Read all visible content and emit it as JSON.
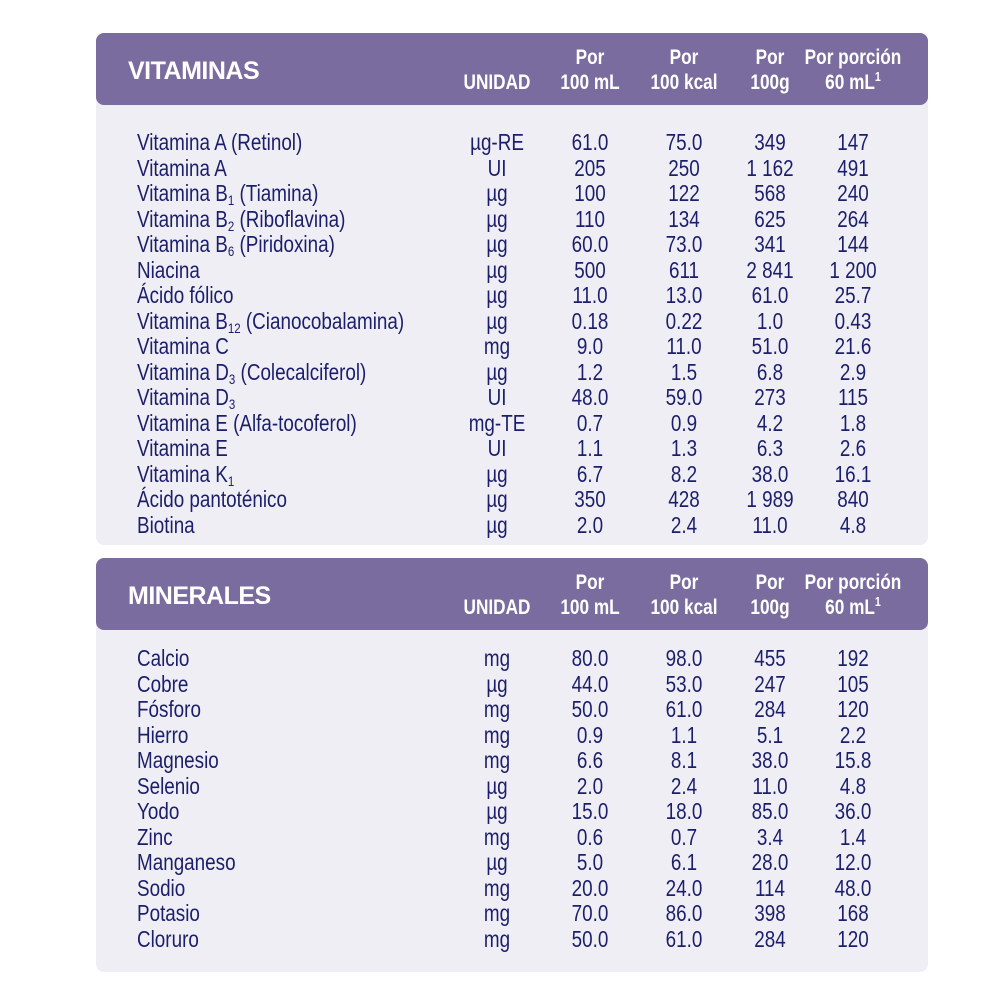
{
  "columns": {
    "unit": "UNIDAD",
    "c1_top": "Por",
    "c1_bottom": "100 mL",
    "c2_top": "Por",
    "c2_bottom": "100 kcal",
    "c3_top": "Por",
    "c3_bottom": "100g",
    "c4_top": "Por porción",
    "c4_bottom": "60 mL",
    "c4_sup": "1"
  },
  "colors": {
    "header_bg": "#7a6c9e",
    "body_bg": "#f0eef5",
    "text": "#1b1f6b"
  },
  "vitaminas": {
    "title": "VITAMINAS",
    "rows": [
      {
        "name": "Vitamina A (Retinol)",
        "unit": "µg-RE",
        "v": [
          "61.0",
          "75.0",
          "349",
          "147"
        ]
      },
      {
        "name": "Vitamina A",
        "unit": "UI",
        "v": [
          "205",
          "250",
          "1 162",
          "491"
        ]
      },
      {
        "name": "Vitamina B",
        "sub": "1",
        "suffix": " (Tiamina)",
        "unit": "µg",
        "v": [
          "100",
          "122",
          "568",
          "240"
        ]
      },
      {
        "name": "Vitamina B",
        "sub": "2",
        "suffix": " (Riboflavina)",
        "unit": "µg",
        "v": [
          "110",
          "134",
          "625",
          "264"
        ]
      },
      {
        "name": "Vitamina B",
        "sub": "6",
        "suffix": " (Piridoxina)",
        "unit": "µg",
        "v": [
          "60.0",
          "73.0",
          "341",
          "144"
        ]
      },
      {
        "name": "Niacina",
        "unit": "µg",
        "v": [
          "500",
          "611",
          "2 841",
          "1 200"
        ]
      },
      {
        "name": "Ácido fólico",
        "unit": "µg",
        "v": [
          "11.0",
          "13.0",
          "61.0",
          "25.7"
        ]
      },
      {
        "name": "Vitamina B",
        "sub": "12",
        "suffix": " (Cianocobalamina)",
        "unit": "µg",
        "v": [
          "0.18",
          "0.22",
          "1.0",
          "0.43"
        ]
      },
      {
        "name": "Vitamina C",
        "unit": "mg",
        "v": [
          "9.0",
          "11.0",
          "51.0",
          "21.6"
        ]
      },
      {
        "name": "Vitamina D",
        "sub": "3",
        "suffix": " (Colecalciferol)",
        "unit": "µg",
        "v": [
          "1.2",
          "1.5",
          "6.8",
          "2.9"
        ]
      },
      {
        "name": "Vitamina D",
        "sub": "3",
        "suffix": "",
        "unit": "UI",
        "v": [
          "48.0",
          "59.0",
          "273",
          "115"
        ]
      },
      {
        "name": "Vitamina E (Alfa-tocoferol)",
        "unit": "mg-TE",
        "v": [
          "0.7",
          "0.9",
          "4.2",
          "1.8"
        ]
      },
      {
        "name": "Vitamina E",
        "unit": "UI",
        "v": [
          "1.1",
          "1.3",
          "6.3",
          "2.6"
        ]
      },
      {
        "name": "Vitamina K",
        "sub": "1",
        "suffix": "",
        "unit": "µg",
        "v": [
          "6.7",
          "8.2",
          "38.0",
          "16.1"
        ]
      },
      {
        "name": "Ácido pantoténico",
        "unit": "µg",
        "v": [
          "350",
          "428",
          "1 989",
          "840"
        ]
      },
      {
        "name": "Biotina",
        "unit": "µg",
        "v": [
          "2.0",
          "2.4",
          "11.0",
          "4.8"
        ]
      }
    ]
  },
  "minerales": {
    "title": "MINERALES",
    "rows": [
      {
        "name": "Calcio",
        "unit": "mg",
        "v": [
          "80.0",
          "98.0",
          "455",
          "192"
        ]
      },
      {
        "name": "Cobre",
        "unit": "µg",
        "v": [
          "44.0",
          "53.0",
          "247",
          "105"
        ]
      },
      {
        "name": "Fósforo",
        "unit": "mg",
        "v": [
          "50.0",
          "61.0",
          "284",
          "120"
        ]
      },
      {
        "name": "Hierro",
        "unit": "mg",
        "v": [
          "0.9",
          "1.1",
          "5.1",
          "2.2"
        ]
      },
      {
        "name": "Magnesio",
        "unit": "mg",
        "v": [
          "6.6",
          "8.1",
          "38.0",
          "15.8"
        ]
      },
      {
        "name": "Selenio",
        "unit": "µg",
        "v": [
          "2.0",
          "2.4",
          "11.0",
          "4.8"
        ]
      },
      {
        "name": "Yodo",
        "unit": "µg",
        "v": [
          "15.0",
          "18.0",
          "85.0",
          "36.0"
        ]
      },
      {
        "name": "Zinc",
        "unit": "mg",
        "v": [
          "0.6",
          "0.7",
          "3.4",
          "1.4"
        ]
      },
      {
        "name": "Manganeso",
        "unit": "µg",
        "v": [
          "5.0",
          "6.1",
          "28.0",
          "12.0"
        ]
      },
      {
        "name": "Sodio",
        "unit": "mg",
        "v": [
          "20.0",
          "24.0",
          "114",
          "48.0"
        ]
      },
      {
        "name": "Potasio",
        "unit": "mg",
        "v": [
          "70.0",
          "86.0",
          "398",
          "168"
        ]
      },
      {
        "name": "Cloruro",
        "unit": "mg",
        "v": [
          "50.0",
          "61.0",
          "284",
          "120"
        ]
      }
    ]
  }
}
